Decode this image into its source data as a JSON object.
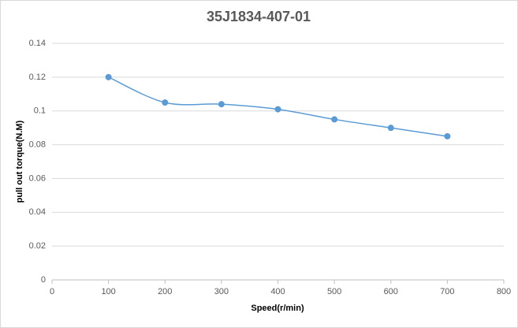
{
  "chart_data": {
    "type": "line",
    "title": "35J1834-407-01",
    "x_label": "Speed(r/min)",
    "y_label": "pull out torque(N.M)",
    "x": [
      100,
      200,
      300,
      400,
      500,
      600,
      700
    ],
    "values": [
      0.12,
      0.105,
      0.104,
      0.101,
      0.095,
      0.09,
      0.085
    ],
    "color": "#5b9bd5",
    "smooth": true,
    "markers": true,
    "xlim": [
      0,
      800
    ],
    "xticks": [
      0,
      100,
      200,
      300,
      400,
      500,
      600,
      700,
      800
    ],
    "ylim": [
      0,
      0.14
    ],
    "yticks": [
      0,
      0.02,
      0.04,
      0.06,
      0.08,
      0.1,
      0.12,
      0.14
    ],
    "grid": true
  }
}
